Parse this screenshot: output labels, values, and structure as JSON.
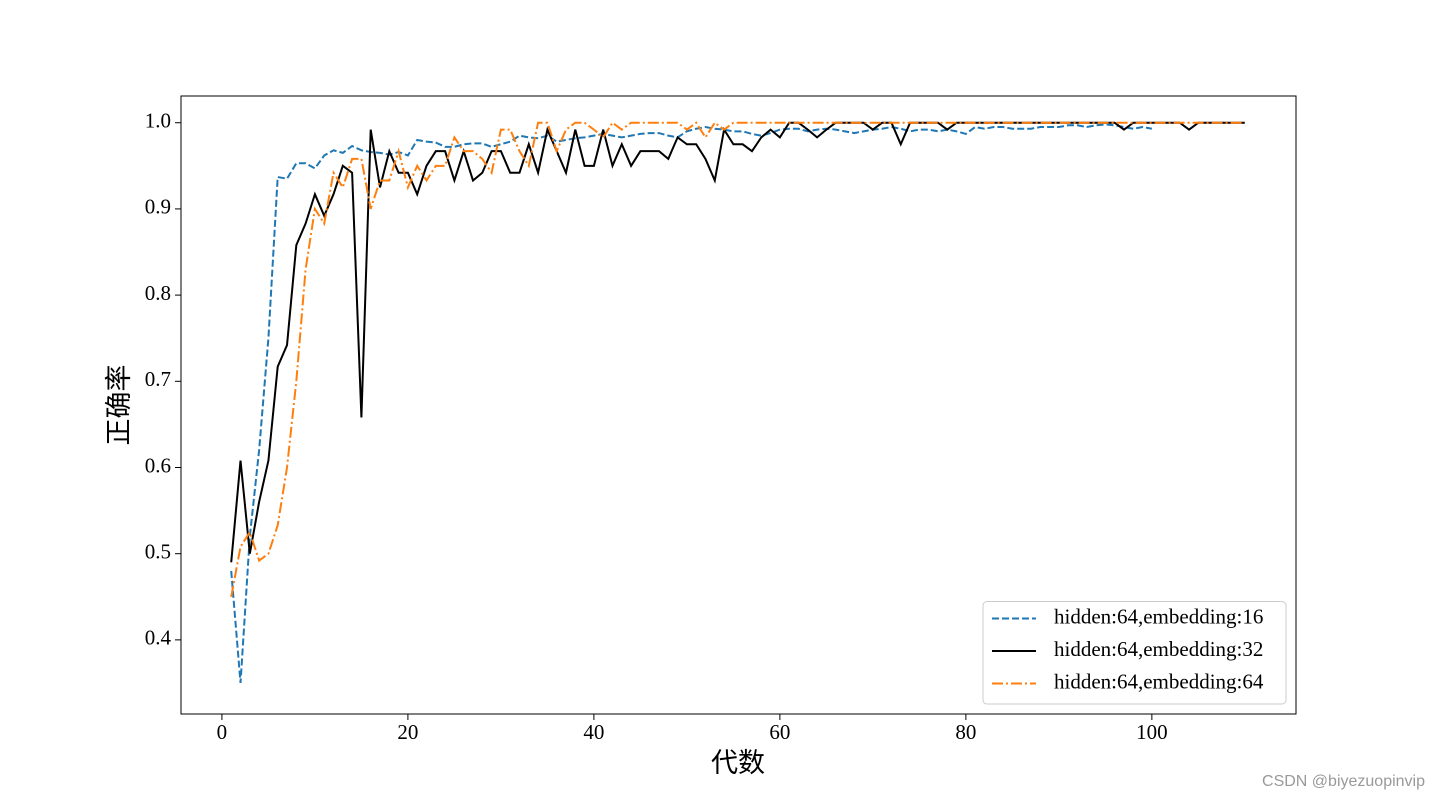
{
  "chart_data": {
    "type": "line",
    "xlabel": "代数",
    "ylabel": "正确率",
    "xlim": [
      -4.4,
      115.5
    ],
    "ylim": [
      0.314,
      1.031
    ],
    "xticks": [
      0,
      20,
      40,
      60,
      80,
      100
    ],
    "yticks": [
      0.4,
      0.5,
      0.6,
      0.7,
      0.8,
      0.9,
      {
        "value": 1.0,
        "label": "1.0"
      }
    ],
    "legend": "lower right",
    "series": [
      {
        "name": "hidden:64,embedding:16",
        "color": "#1f77b4",
        "style": "dashed",
        "x": [
          1,
          2,
          3,
          4,
          5,
          6,
          7,
          8,
          9,
          10,
          11,
          12,
          13,
          14,
          15,
          16,
          17,
          18,
          19,
          20,
          21,
          22,
          23,
          24,
          25,
          26,
          27,
          28,
          29,
          30,
          31,
          32,
          33,
          34,
          35,
          36,
          37,
          38,
          39,
          40,
          41,
          42,
          43,
          44,
          45,
          46,
          47,
          48,
          49,
          50,
          51,
          52,
          53,
          54,
          55,
          56,
          57,
          58,
          59,
          60,
          61,
          62,
          63,
          64,
          65,
          66,
          67,
          68,
          69,
          70,
          71,
          72,
          73,
          74,
          75,
          76,
          77,
          78,
          79,
          80,
          81,
          82,
          83,
          84,
          85,
          86,
          87,
          88,
          89,
          90,
          91,
          92,
          93,
          94,
          95,
          96,
          97,
          98,
          99,
          100
        ],
        "values": [
          0.48,
          0.35,
          0.52,
          0.62,
          0.75,
          0.937,
          0.935,
          0.953,
          0.953,
          0.947,
          0.962,
          0.968,
          0.965,
          0.973,
          0.968,
          0.966,
          0.965,
          0.963,
          0.966,
          0.962,
          0.98,
          0.978,
          0.977,
          0.972,
          0.972,
          0.975,
          0.976,
          0.976,
          0.972,
          0.975,
          0.978,
          0.985,
          0.983,
          0.982,
          0.985,
          0.978,
          0.98,
          0.982,
          0.983,
          0.985,
          0.987,
          0.985,
          0.983,
          0.985,
          0.987,
          0.988,
          0.988,
          0.985,
          0.983,
          0.99,
          0.993,
          0.995,
          0.993,
          0.992,
          0.99,
          0.99,
          0.987,
          0.985,
          0.988,
          0.992,
          0.993,
          0.993,
          0.99,
          0.992,
          0.993,
          0.992,
          0.99,
          0.988,
          0.99,
          0.992,
          0.993,
          0.995,
          0.993,
          0.99,
          0.992,
          0.992,
          0.99,
          0.992,
          0.99,
          0.987,
          0.995,
          0.993,
          0.995,
          0.995,
          0.993,
          0.993,
          0.993,
          0.995,
          0.995,
          0.995,
          0.997,
          0.997,
          0.995,
          0.997,
          0.998,
          0.997,
          0.995,
          0.993,
          0.995,
          0.993
        ]
      },
      {
        "name": "hidden:64,embedding:32",
        "color": "#000000",
        "style": "solid",
        "x": [
          1,
          2,
          3,
          4,
          5,
          6,
          7,
          8,
          9,
          10,
          11,
          12,
          13,
          14,
          15,
          16,
          17,
          18,
          19,
          20,
          21,
          22,
          23,
          24,
          25,
          26,
          27,
          28,
          29,
          30,
          31,
          32,
          33,
          34,
          35,
          36,
          37,
          38,
          39,
          40,
          41,
          42,
          43,
          44,
          45,
          46,
          47,
          48,
          49,
          50,
          51,
          52,
          53,
          54,
          55,
          56,
          57,
          58,
          59,
          60,
          61,
          62,
          63,
          64,
          65,
          66,
          67,
          68,
          69,
          70,
          71,
          72,
          73,
          74,
          75,
          76,
          77,
          78,
          79,
          80,
          81,
          82,
          83,
          84,
          85,
          86,
          87,
          88,
          89,
          90,
          91,
          92,
          93,
          94,
          95,
          96,
          97,
          98,
          99,
          100,
          101,
          102,
          103,
          104,
          105,
          106,
          107,
          108,
          109,
          110
        ],
        "values": [
          0.49,
          0.608,
          0.5,
          0.56,
          0.608,
          0.717,
          0.742,
          0.858,
          0.883,
          0.917,
          0.892,
          0.917,
          0.95,
          0.942,
          0.658,
          0.992,
          0.925,
          0.967,
          0.942,
          0.942,
          0.917,
          0.95,
          0.967,
          0.967,
          0.933,
          0.967,
          0.933,
          0.942,
          0.967,
          0.967,
          0.942,
          0.942,
          0.975,
          0.942,
          0.992,
          0.967,
          0.942,
          0.992,
          0.95,
          0.95,
          0.992,
          0.95,
          0.975,
          0.95,
          0.967,
          0.967,
          0.967,
          0.958,
          0.983,
          0.975,
          0.975,
          0.958,
          0.933,
          0.992,
          0.975,
          0.975,
          0.967,
          0.983,
          0.992,
          0.983,
          1,
          1,
          0.992,
          0.983,
          0.992,
          1,
          1,
          1,
          1,
          0.992,
          1,
          1,
          0.975,
          1,
          1,
          1,
          1,
          0.992,
          1,
          1,
          1,
          1,
          1,
          1,
          1,
          1,
          1,
          1,
          1,
          1,
          1,
          1,
          1,
          1,
          1,
          1,
          0.992,
          1,
          1,
          1,
          1,
          1,
          1,
          0.992,
          1,
          1,
          1,
          1,
          1,
          1
        ]
      },
      {
        "name": "hidden:64,embedding:64",
        "color": "#ff7f0e",
        "style": "dashdot",
        "x": [
          1,
          2,
          3,
          4,
          5,
          6,
          7,
          8,
          9,
          10,
          11,
          12,
          13,
          14,
          15,
          16,
          17,
          18,
          19,
          20,
          21,
          22,
          23,
          24,
          25,
          26,
          27,
          28,
          29,
          30,
          31,
          32,
          33,
          34,
          35,
          36,
          37,
          38,
          39,
          40,
          41,
          42,
          43,
          44,
          45,
          46,
          47,
          48,
          49,
          50,
          51,
          52,
          53,
          54,
          55,
          56,
          57,
          58,
          59,
          60,
          61,
          62,
          63,
          64,
          65,
          66,
          67,
          68,
          69,
          70,
          71,
          72,
          73,
          74,
          75,
          76,
          77,
          78,
          79,
          80,
          81,
          82,
          83,
          84,
          85,
          86,
          87,
          88,
          89,
          90,
          91,
          92,
          93,
          94,
          95,
          96,
          97,
          98,
          99,
          100,
          101,
          102,
          103,
          104,
          105,
          106,
          107,
          108,
          109,
          110
        ],
        "values": [
          0.45,
          0.508,
          0.525,
          0.492,
          0.5,
          0.533,
          0.6,
          0.7,
          0.83,
          0.9,
          0.883,
          0.942,
          0.925,
          0.958,
          0.958,
          0.9,
          0.933,
          0.933,
          0.967,
          0.925,
          0.95,
          0.933,
          0.95,
          0.95,
          0.983,
          0.967,
          0.967,
          0.958,
          0.942,
          0.992,
          0.992,
          0.967,
          0.95,
          1,
          1,
          0.967,
          0.992,
          1,
          1,
          0.992,
          0.983,
          1,
          0.992,
          1,
          1,
          1,
          1,
          1,
          1,
          0.992,
          1,
          0.983,
          1,
          0.992,
          1,
          1,
          1,
          1,
          1,
          1,
          1,
          1,
          1,
          1,
          1,
          1,
          1,
          1,
          1,
          1,
          1,
          1,
          1,
          1,
          1,
          1,
          1,
          1,
          1,
          1,
          1,
          1,
          1,
          1,
          1,
          1,
          1,
          1,
          1,
          1,
          1,
          1,
          1,
          1,
          1,
          1,
          1,
          1,
          1,
          1,
          1,
          1,
          1,
          1,
          1,
          1,
          1,
          1,
          1,
          1
        ]
      }
    ]
  },
  "watermark": "CSDN @biyezuopinvip"
}
